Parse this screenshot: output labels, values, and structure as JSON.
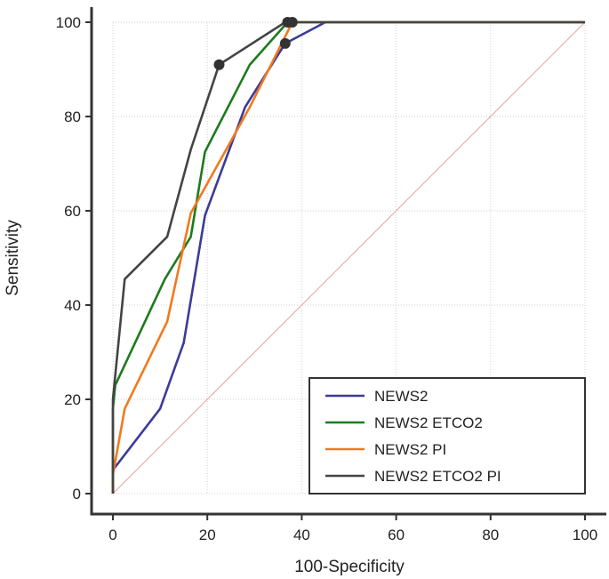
{
  "chart_data": {
    "type": "line",
    "title": "",
    "xlabel": "100-Specificity",
    "ylabel": "Sensitivity",
    "xlim": [
      0,
      100
    ],
    "ylim": [
      0,
      100
    ],
    "xticks": [
      0,
      20,
      40,
      60,
      80,
      100
    ],
    "yticks": [
      0,
      20,
      40,
      60,
      80,
      100
    ],
    "grid": true,
    "legend_position": "bottom-right",
    "reference_line": {
      "x": [
        0,
        100
      ],
      "y": [
        0,
        100
      ],
      "color": "#e8a0a0"
    },
    "series": [
      {
        "name": "NEWS2",
        "color": "#3b3b9a",
        "x": [
          0,
          0,
          10,
          15,
          19.5,
          28,
          36.5,
          45,
          100
        ],
        "y": [
          0,
          5,
          18,
          32,
          59,
          82,
          95.5,
          100,
          100
        ],
        "marker": {
          "x": 36.5,
          "y": 95.5
        }
      },
      {
        "name": "NEWS2 ETCO2",
        "color": "#1e7a1e",
        "x": [
          0,
          0,
          0.5,
          11,
          16.5,
          19.5,
          29,
          37,
          100
        ],
        "y": [
          0,
          18,
          23,
          45.5,
          54.5,
          72.5,
          91,
          100,
          100
        ],
        "marker": {
          "x": 37,
          "y": 100
        }
      },
      {
        "name": "NEWS2 PI",
        "color": "#f07a1e",
        "x": [
          0,
          0,
          2.5,
          11.5,
          16.5,
          29,
          38,
          100
        ],
        "y": [
          0,
          4,
          18,
          36.5,
          59.5,
          82,
          100,
          100
        ],
        "marker": {
          "x": 38,
          "y": 100
        }
      },
      {
        "name": "NEWS2 ETCO2 PI",
        "color": "#444444",
        "x": [
          0,
          0,
          2.5,
          11.5,
          16.5,
          22.5,
          36.5,
          100
        ],
        "y": [
          0,
          20,
          45.5,
          54.5,
          73,
          91,
          100,
          100
        ],
        "marker": {
          "x": 22.5,
          "y": 91
        }
      }
    ]
  }
}
